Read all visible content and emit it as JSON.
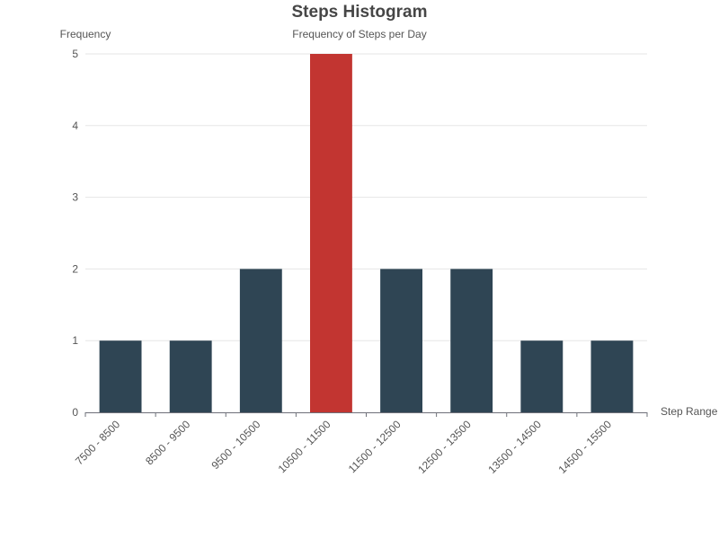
{
  "chart_data": {
    "type": "bar",
    "title": "Steps Histogram",
    "subtitle": "Frequency of Steps per Day",
    "xlabel": "Step Range",
    "ylabel": "Frequency",
    "categories": [
      "7500 - 8500",
      "8500 - 9500",
      "9500 - 10500",
      "10500 - 11500",
      "11500 - 12500",
      "12500 - 13500",
      "13500 - 14500",
      "14500 - 15500"
    ],
    "values": [
      1,
      1,
      2,
      5,
      2,
      2,
      1,
      1
    ],
    "ylim": [
      0,
      5
    ],
    "yticks": [
      0,
      1,
      2,
      3,
      4,
      5
    ],
    "grid": true,
    "legend": "none",
    "colors": {
      "bar": "#2f4554",
      "highlight": "#c23531",
      "axis": "#6e7079",
      "grid": "#e6e6e6",
      "text": "#555555"
    }
  }
}
